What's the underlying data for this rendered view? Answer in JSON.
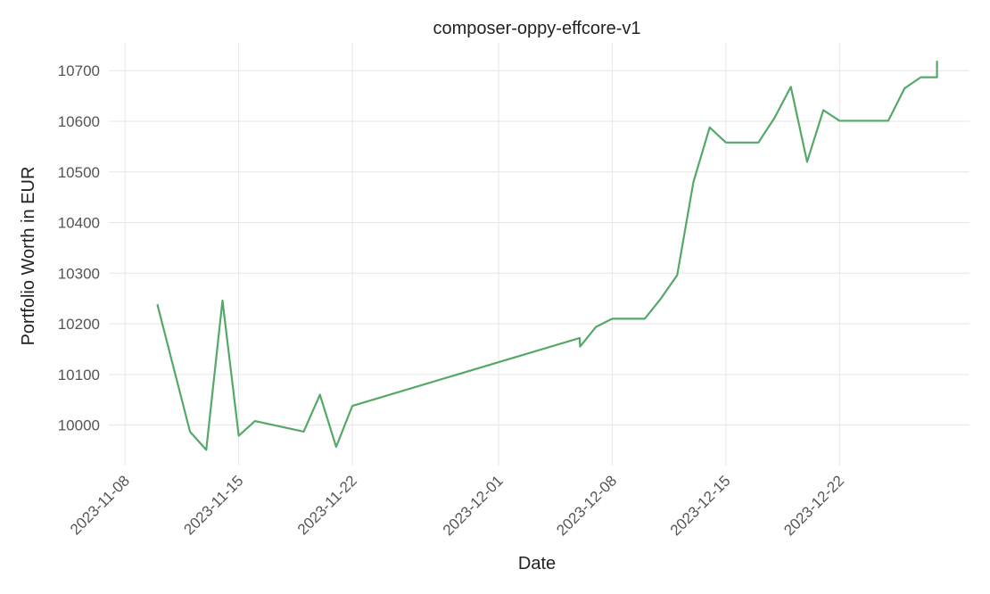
{
  "chart_data": {
    "type": "line",
    "title": "composer-oppy-effcore-v1",
    "xlabel": "Date",
    "ylabel": "Portfolio Worth in EUR",
    "x_type": "date",
    "xlim": [
      "2023-11-07",
      "2023-12-30"
    ],
    "ylim": [
      9920,
      10755
    ],
    "x_ticks": [
      "2023-11-08",
      "2023-11-15",
      "2023-11-22",
      "2023-12-01",
      "2023-12-08",
      "2023-12-15",
      "2023-12-22"
    ],
    "y_ticks": [
      10000,
      10100,
      10200,
      10300,
      10400,
      10500,
      10600,
      10700
    ],
    "grid": true,
    "line_color": "#55a868",
    "series": [
      {
        "points": [
          [
            "2023-11-10T00:00",
            10237
          ],
          [
            "2023-11-12T00:00",
            9987
          ],
          [
            "2023-11-13T00:00",
            9951
          ],
          [
            "2023-11-14T00:00",
            10246
          ],
          [
            "2023-11-15T00:00",
            9979
          ],
          [
            "2023-11-16T00:00",
            10008
          ],
          [
            "2023-11-19T00:00",
            9987
          ],
          [
            "2023-11-20T00:00",
            10060
          ],
          [
            "2023-11-21T00:00",
            9957
          ],
          [
            "2023-11-22T00:00",
            10038
          ],
          [
            "2023-12-06T00:00",
            10172
          ],
          [
            "2023-12-06T00:30",
            10155
          ],
          [
            "2023-12-07T00:00",
            10194
          ],
          [
            "2023-12-08T00:00",
            10210
          ],
          [
            "2023-12-10T00:00",
            10210
          ],
          [
            "2023-12-11T00:00",
            10250
          ],
          [
            "2023-12-12T00:00",
            10296
          ],
          [
            "2023-12-13T00:00",
            10480
          ],
          [
            "2023-12-14T00:00",
            10588
          ],
          [
            "2023-12-15T00:00",
            10558
          ],
          [
            "2023-12-17T00:00",
            10558
          ],
          [
            "2023-12-18T00:00",
            10607
          ],
          [
            "2023-12-19T00:00",
            10668
          ],
          [
            "2023-12-20T00:00",
            10520
          ],
          [
            "2023-12-21T00:00",
            10622
          ],
          [
            "2023-12-22T00:00",
            10601
          ],
          [
            "2023-12-25T00:00",
            10601
          ],
          [
            "2023-12-26T00:00",
            10665
          ],
          [
            "2023-12-27T00:00",
            10687
          ],
          [
            "2023-12-28T00:00",
            10687
          ],
          [
            "2023-12-28T00:00",
            10718
          ]
        ]
      }
    ]
  }
}
